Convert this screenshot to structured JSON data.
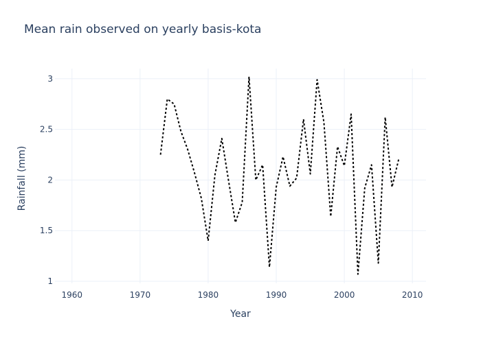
{
  "chart_data": {
    "type": "line",
    "title": "Mean rain observed on yearly basis-kota",
    "xlabel": "Year",
    "ylabel": "Rainfall (mm)",
    "xlim": [
      1957.5,
      2012
    ],
    "ylim": [
      0.98,
      3.1
    ],
    "xticks": [
      1960,
      1970,
      1980,
      1990,
      2000,
      2010
    ],
    "xtick_labels": [
      "1960",
      "1970",
      "1980",
      "1990",
      "2000",
      "2010"
    ],
    "yticks": [
      1,
      1.5,
      2,
      2.5,
      3
    ],
    "ytick_labels": [
      "1",
      "1.5",
      "2",
      "2.5",
      "3"
    ],
    "grid": true,
    "legend": false,
    "line_style": "dotted",
    "line_color": "#000000",
    "series": [
      {
        "x": [
          1973,
          1974,
          1975,
          1976,
          1977,
          1978,
          1979,
          1980,
          1981,
          1982,
          1983,
          1984,
          1985,
          1986,
          1987,
          1988,
          1989,
          1990,
          1991,
          1992,
          1993,
          1994,
          1995,
          1996,
          1997,
          1998,
          1999,
          2000,
          2001,
          2002,
          2003,
          2004,
          2005,
          2006,
          2007,
          2008
        ],
        "y": [
          2.25,
          2.8,
          2.75,
          2.48,
          2.3,
          2.07,
          1.82,
          1.4,
          2.05,
          2.41,
          1.99,
          1.58,
          1.78,
          3.02,
          2.0,
          2.15,
          1.14,
          1.93,
          2.23,
          1.94,
          2.02,
          2.6,
          2.06,
          2.99,
          2.57,
          1.64,
          2.33,
          2.14,
          2.65,
          1.07,
          1.92,
          2.15,
          1.18,
          2.62,
          1.93,
          2.21
        ]
      }
    ]
  }
}
